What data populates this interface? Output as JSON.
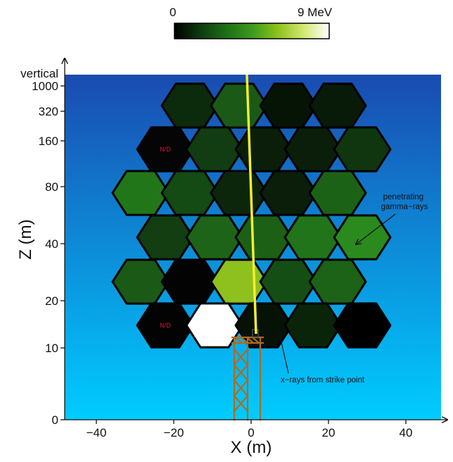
{
  "colorbar": {
    "min_label": "0",
    "max_label": "9 MeV",
    "stops": [
      "#000000",
      "#0e3a0e",
      "#1f6e16",
      "#3a9a1c",
      "#8cc21a",
      "#d2e870",
      "#ffffff"
    ]
  },
  "axes": {
    "xlabel": "X (m)",
    "ylabel": "Z (m)",
    "x_ticks": [
      "−40",
      "−20",
      "0",
      "20",
      "40"
    ],
    "z_ticks": [
      "0",
      "10",
      "20",
      "40",
      "80",
      "160",
      "320",
      "1000",
      "vertical"
    ],
    "background_top": "#1a4bb0",
    "background_bottom": "#00ccff"
  },
  "detectors": [
    {
      "color": "#0c2a0c",
      "label": ""
    },
    {
      "color": "#1a5a16",
      "label": ""
    },
    {
      "color": "#061406",
      "label": ""
    },
    {
      "color": "#081a08",
      "label": ""
    },
    {
      "color": "#050505",
      "label": "N/D"
    },
    {
      "color": "#123c12",
      "label": ""
    },
    {
      "color": "#0a1e0a",
      "label": ""
    },
    {
      "color": "#0a1e0a",
      "label": ""
    },
    {
      "color": "#103610",
      "label": ""
    },
    {
      "color": "#22761a",
      "label": ""
    },
    {
      "color": "#144a14",
      "label": ""
    },
    {
      "color": "#0c260c",
      "label": ""
    },
    {
      "color": "#0a1e0a",
      "label": ""
    },
    {
      "color": "#1c6216",
      "label": ""
    },
    {
      "color": "#123e12",
      "label": ""
    },
    {
      "color": "#1e6418",
      "label": ""
    },
    {
      "color": "#1c6016",
      "label": ""
    },
    {
      "color": "#22741a",
      "label": ""
    },
    {
      "color": "#2a8a1e",
      "label": ""
    },
    {
      "color": "#1a5a16",
      "label": ""
    },
    {
      "color": "#030303",
      "label": ""
    },
    {
      "color": "#8ec01e",
      "label": ""
    },
    {
      "color": "#154e14",
      "label": ""
    },
    {
      "color": "#1c6217",
      "label": ""
    },
    {
      "color": "#030303",
      "label": "N/D"
    },
    {
      "color": "#ffffff",
      "label": ""
    },
    {
      "color": "#061206",
      "label": ""
    },
    {
      "color": "#0a240a",
      "label": ""
    }
  ],
  "annotations": {
    "gamma": "penetrating gamma−rays",
    "xray": "x−rays from strike point"
  },
  "colors": {
    "lightning": "#f5ee2e",
    "tower": "#b06a1e",
    "outline": "#000000"
  }
}
